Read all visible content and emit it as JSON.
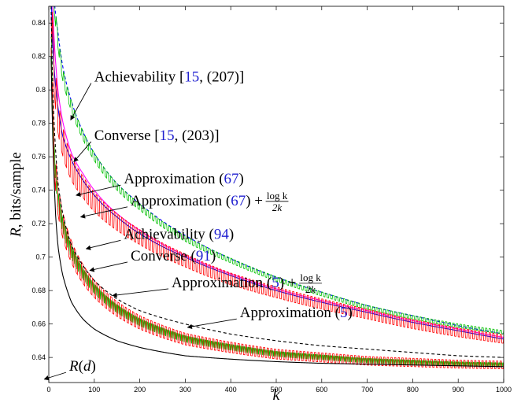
{
  "chart_data": {
    "type": "line",
    "xlabel": "k",
    "ylabel": {
      "symbol": "R",
      "rest": ", bits/sample"
    },
    "xlim": [
      0,
      1000
    ],
    "ylim": [
      0.625,
      0.85
    ],
    "xticks": [
      0,
      100,
      200,
      300,
      400,
      500,
      600,
      700,
      800,
      900,
      1000
    ],
    "yticks": [
      0.64,
      0.66,
      0.68,
      0.7,
      0.72,
      0.74,
      0.76,
      0.78,
      0.8,
      0.82,
      0.84
    ],
    "grid": false,
    "legend": "none",
    "series": [
      {
        "color": "#0000ff",
        "style": "dashed",
        "x": [
          5,
          10,
          20,
          30,
          50,
          75,
          100,
          150,
          200,
          300,
          400,
          500,
          600,
          700,
          800,
          900,
          1000
        ],
        "y": [
          0.9,
          0.86,
          0.835,
          0.815,
          0.793,
          0.775,
          0.762,
          0.744,
          0.732,
          0.713,
          0.699,
          0.688,
          0.679,
          0.671,
          0.665,
          0.659,
          0.654
        ]
      },
      {
        "color": "#00c000",
        "style": "oscillating",
        "x": [
          5,
          10,
          20,
          30,
          50,
          75,
          100,
          150,
          200,
          300,
          400,
          500,
          600,
          700,
          800,
          900,
          1000
        ],
        "y": [
          0.9,
          0.86,
          0.83,
          0.81,
          0.79,
          0.773,
          0.76,
          0.742,
          0.73,
          0.711,
          0.698,
          0.687,
          0.678,
          0.67,
          0.664,
          0.659,
          0.655
        ],
        "amplitude": 0.004
      },
      {
        "color": "#ff00ff",
        "style": "solid",
        "x": [
          5,
          10,
          20,
          30,
          50,
          75,
          100,
          150,
          200,
          300,
          400,
          500,
          600,
          700,
          800,
          900,
          1000
        ],
        "y": [
          0.88,
          0.84,
          0.8,
          0.782,
          0.762,
          0.75,
          0.74,
          0.726,
          0.716,
          0.701,
          0.69,
          0.681,
          0.674,
          0.668,
          0.662,
          0.657,
          0.652
        ]
      },
      {
        "color": "#0000ff",
        "style": "solid",
        "x": [
          5,
          10,
          20,
          30,
          50,
          75,
          100,
          150,
          200,
          300,
          400,
          500,
          600,
          700,
          800,
          900,
          1000
        ],
        "y": [
          0.86,
          0.82,
          0.79,
          0.773,
          0.758,
          0.746,
          0.737,
          0.724,
          0.714,
          0.7,
          0.689,
          0.68,
          0.673,
          0.667,
          0.661,
          0.656,
          0.651
        ]
      },
      {
        "color": "#ff0000",
        "style": "oscillating",
        "x": [
          5,
          10,
          20,
          30,
          50,
          75,
          100,
          150,
          200,
          300,
          400,
          500,
          600,
          700,
          800,
          900,
          1000
        ],
        "y": [
          0.86,
          0.82,
          0.785,
          0.77,
          0.753,
          0.742,
          0.733,
          0.721,
          0.712,
          0.698,
          0.687,
          0.679,
          0.672,
          0.666,
          0.66,
          0.655,
          0.651
        ],
        "amplitude": 0.01
      },
      {
        "color": "#00c000",
        "style": "oscillating-dense",
        "x": [
          5,
          10,
          20,
          30,
          50,
          75,
          100,
          150,
          200,
          300,
          400,
          500,
          600,
          700,
          800,
          900,
          1000
        ],
        "y": [
          0.84,
          0.77,
          0.735,
          0.72,
          0.703,
          0.69,
          0.681,
          0.669,
          0.661,
          0.651,
          0.646,
          0.642,
          0.64,
          0.638,
          0.637,
          0.636,
          0.6355
        ],
        "amplitude": 0.005
      },
      {
        "color": "#ff0000",
        "style": "oscillating",
        "x": [
          5,
          10,
          20,
          30,
          50,
          75,
          100,
          150,
          200,
          300,
          400,
          500,
          600,
          700,
          800,
          900,
          1000
        ],
        "y": [
          0.84,
          0.77,
          0.735,
          0.72,
          0.703,
          0.69,
          0.681,
          0.669,
          0.661,
          0.651,
          0.646,
          0.642,
          0.64,
          0.638,
          0.637,
          0.636,
          0.6355
        ],
        "amplitude": 0.009
      },
      {
        "color": "#000000",
        "style": "dashed",
        "x": [
          5,
          10,
          20,
          30,
          50,
          75,
          100,
          150,
          200,
          300,
          400,
          500,
          600,
          700,
          800,
          900,
          1000
        ],
        "y": [
          0.85,
          0.79,
          0.745,
          0.727,
          0.707,
          0.695,
          0.686,
          0.675,
          0.668,
          0.66,
          0.654,
          0.65,
          0.647,
          0.645,
          0.643,
          0.641,
          0.64
        ]
      },
      {
        "color": "#000000",
        "style": "solid",
        "x": [
          5,
          10,
          15,
          20,
          30,
          50,
          75,
          100,
          150,
          200,
          300,
          400,
          500,
          600,
          700,
          800,
          900,
          1000
        ],
        "y": [
          0.82,
          0.76,
          0.725,
          0.707,
          0.69,
          0.673,
          0.663,
          0.657,
          0.65,
          0.646,
          0.641,
          0.639,
          0.6375,
          0.6365,
          0.636,
          0.6355,
          0.635,
          0.6345
        ]
      }
    ],
    "annotations": [
      {
        "text": "Achievability [",
        "ref": "15",
        "suffix": ", (207)]",
        "anchor": [
          100,
          0.805
        ],
        "tip": [
          48,
          0.782
        ]
      },
      {
        "text": "Converse [",
        "ref": "15",
        "suffix": ", (203)]",
        "anchor": [
          100,
          0.77
        ],
        "tip": [
          55,
          0.757
        ]
      },
      {
        "text": "Approximation (",
        "ref": "67",
        "suffix": ")",
        "anchor": [
          165,
          0.744
        ],
        "tip": [
          60,
          0.737
        ]
      },
      {
        "text": "Approximation (",
        "ref": "67",
        "suffix": ") + ",
        "frac_num": "log k",
        "frac_den": "2k",
        "anchor": [
          180,
          0.731
        ],
        "tip": [
          70,
          0.724
        ]
      },
      {
        "text": "Achievability (",
        "ref": "94",
        "suffix": ")",
        "anchor": [
          165,
          0.711
        ],
        "tip": [
          82,
          0.705
        ]
      },
      {
        "text": "Converse (",
        "ref": "91",
        "suffix": ")",
        "anchor": [
          180,
          0.698
        ],
        "tip": [
          90,
          0.692
        ]
      },
      {
        "text": "Approximation (",
        "ref": "5",
        "suffix": ") + ",
        "frac_num": "log k",
        "frac_den": "2k",
        "anchor": [
          270,
          0.682
        ],
        "tip": [
          140,
          0.677
        ]
      },
      {
        "text": "Approximation (",
        "ref": "5",
        "suffix": ")",
        "anchor": [
          420,
          0.664
        ],
        "tip": [
          305,
          0.658
        ]
      },
      {
        "text": "R(d)",
        "anchor": [
          45,
          0.632
        ],
        "tip": [
          -10,
          0.627
        ]
      }
    ]
  }
}
